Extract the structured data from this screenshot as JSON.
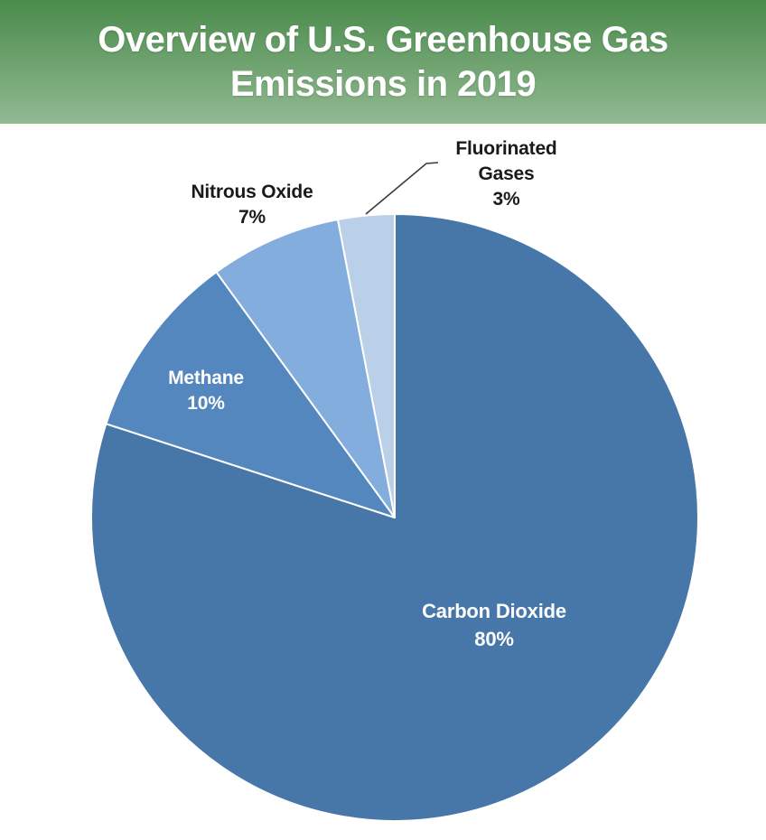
{
  "header": {
    "title": "Overview of U.S. Greenhouse Gas Emissions in 2019",
    "title_lines": [
      "Overview of U.S. Greenhouse Gas",
      "Emissions in 2019"
    ],
    "gradient_top": "#4a8b4b",
    "gradient_bottom": "#92b992",
    "text_color": "#ffffff"
  },
  "chart_data": {
    "type": "pie",
    "title": "Overview of U.S. Greenhouse Gas Emissions in 2019",
    "units": "percent of total emissions",
    "start_angle_deg": 0,
    "direction": "clockwise",
    "legend_position": "none",
    "slices": [
      {
        "label": "Carbon Dioxide",
        "value": 80,
        "percent_label": "80%",
        "color": "#4677a8",
        "label_color": "#ffffff",
        "label_placement": "inside"
      },
      {
        "label": "Methane",
        "value": 10,
        "percent_label": "10%",
        "color": "#5387be",
        "label_color": "#ffffff",
        "label_placement": "inside"
      },
      {
        "label": "Nitrous Oxide",
        "value": 7,
        "percent_label": "7%",
        "color": "#82addc",
        "label_color": "#1a1a1a",
        "label_placement": "outside"
      },
      {
        "label": "Fluorinated Gases",
        "value": 3,
        "percent_label": "3%",
        "color": "#bacfe8",
        "label_color": "#1a1a1a",
        "label_placement": "outside-leader-line"
      }
    ],
    "slice_border_color": "#ffffff",
    "leader_line_color": "#3a3a3a"
  }
}
